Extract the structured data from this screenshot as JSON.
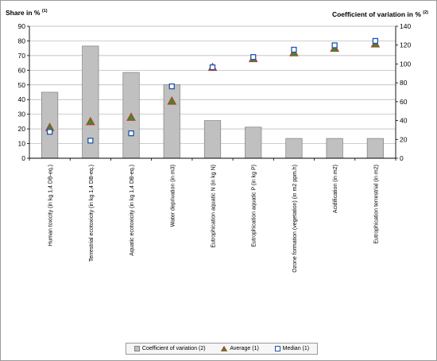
{
  "chart_data": {
    "type": "bar",
    "y_left_label": "Share in %",
    "y_left_note": "(1)",
    "y_right_label": "Coefficient of variation in %",
    "y_right_note": "(2)",
    "ylim_left": [
      0,
      90
    ],
    "ylim_right": [
      0,
      140
    ],
    "y_left_ticks": [
      "0",
      "10",
      "20",
      "30",
      "40",
      "50",
      "60",
      "70",
      "80",
      "90"
    ],
    "y_right_ticks": [
      "0",
      "20",
      "40",
      "60",
      "80",
      "100",
      "120",
      "140"
    ],
    "categories": [
      "Human toxicity (in kg 1,4 DB-eq.)",
      "Terrestrial ecotoxicity (in kg 1,4 DB-eq.)",
      "Aquatic ecotoxicity (in kg 1,4 DB-eq.)",
      "Water deprivation (in m3)",
      "Eutrophication aquatic N (in kg N)",
      "Eutrophication aquatic P (in kg P)",
      "Ozone formation (vegetation) (in m2 ppm.h)",
      "Acidification (in m2)",
      "Eutrophication terrestrial (in m2)"
    ],
    "series": [
      {
        "name": "Coefficient of variation (2)",
        "kind": "bar",
        "axis": "right",
        "color": "#c0c0c0",
        "values": [
          70,
          119,
          91,
          78,
          40,
          33,
          21,
          21,
          21
        ]
      },
      {
        "name": "Average (1)",
        "kind": "triangle",
        "axis": "left",
        "color": "#3a8a2a",
        "edge": "#c0392b",
        "values": [
          21,
          25,
          28,
          39,
          62,
          68,
          72,
          75,
          78
        ]
      },
      {
        "name": "Median (1)",
        "kind": "square",
        "axis": "left",
        "color": "#2255aa",
        "values": [
          18,
          12,
          17,
          49,
          62,
          69,
          74,
          77,
          80
        ]
      }
    ],
    "grid": true,
    "legend_position": "bottom"
  },
  "legend": {
    "bar": "Coefficient of variation (2)",
    "avg": "Average (1)",
    "med": "Median (1)"
  }
}
